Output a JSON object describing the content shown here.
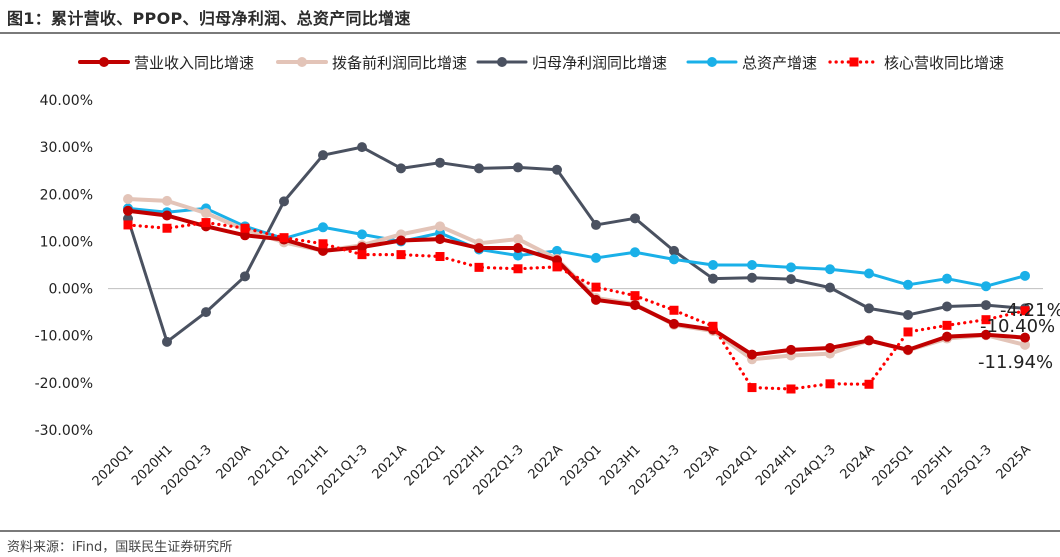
{
  "figure": {
    "title": "图1：累计营收、PPOP、归母净利润、总资产同比增速",
    "source": "资料来源：iFind，国联民生证券研究所"
  },
  "chart_data": {
    "type": "line",
    "categories": [
      "2020Q1",
      "2020H1",
      "2020Q1-3",
      "2020A",
      "2021Q1",
      "2021H1",
      "2021Q1-3",
      "2021A",
      "2022Q1",
      "2022H1",
      "2022Q1-3",
      "2022A",
      "2023Q1",
      "2023H1",
      "2023Q1-3",
      "2023A",
      "2024Q1",
      "2024H1",
      "2024Q1-3",
      "2024A",
      "2025Q1",
      "2025H1",
      "2025Q1-3",
      "2025A"
    ],
    "ylim": [
      -30,
      40
    ],
    "yticks": [
      -30,
      -20,
      -10,
      0,
      10,
      20,
      30,
      40
    ],
    "ytick_labels": [
      "-30.00%",
      "-20.00%",
      "-10.00%",
      "0.00%",
      "10.00%",
      "20.00%",
      "30.00%",
      "40.00%"
    ],
    "legend_position": "top",
    "grid": false,
    "series": [
      {
        "name": "营业收入同比增速",
        "color": "#c00000",
        "style": "solid",
        "width": 4,
        "values": [
          16.5,
          15.5,
          13.2,
          11.3,
          10.4,
          8.0,
          8.8,
          10.2,
          10.5,
          8.6,
          8.6,
          6.0,
          -2.4,
          -3.5,
          -7.5,
          -8.7,
          -14.0,
          -13.0,
          -12.6,
          -11.0,
          -13.0,
          -10.2,
          -9.8,
          -10.4
        ]
      },
      {
        "name": "拨备前利润同比增速",
        "color": "#e3c4b8",
        "style": "solid",
        "width": 4,
        "values": [
          19.0,
          18.6,
          16.0,
          12.5,
          9.8,
          8.0,
          9.2,
          11.5,
          13.2,
          9.6,
          10.5,
          6.3,
          -2.0,
          -3.3,
          -7.7,
          -9.0,
          -15.0,
          -14.2,
          -13.8,
          -11.0,
          -13.1,
          -10.6,
          -9.9,
          -11.94
        ]
      },
      {
        "name": "归母净利润同比增速",
        "color": "#4a5160",
        "style": "solid",
        "width": 3,
        "values": [
          14.8,
          -11.3,
          -5.0,
          2.6,
          18.5,
          28.3,
          30.0,
          25.5,
          26.7,
          25.5,
          25.7,
          25.2,
          13.5,
          14.9,
          8.0,
          2.1,
          2.3,
          2.0,
          0.2,
          -4.2,
          -5.6,
          -3.8,
          -3.5,
          -4.21
        ]
      },
      {
        "name": "总资产增速",
        "color": "#1ab0e8",
        "style": "solid",
        "width": 3,
        "values": [
          17.0,
          16.2,
          17.0,
          13.2,
          10.6,
          13.0,
          11.5,
          10.0,
          11.8,
          8.3,
          7.0,
          8.0,
          6.5,
          7.7,
          6.2,
          5.0,
          5.0,
          4.5,
          4.1,
          3.2,
          0.8,
          2.1,
          0.5,
          2.7
        ]
      },
      {
        "name": "核心营收同比增速",
        "color": "#ff0000",
        "style": "dotted",
        "width": 3,
        "values": [
          13.5,
          12.8,
          14.0,
          12.8,
          10.8,
          9.5,
          7.2,
          7.2,
          6.8,
          4.5,
          4.2,
          4.6,
          0.3,
          -1.5,
          -4.6,
          -8.0,
          -21.0,
          -21.3,
          -20.2,
          -20.3,
          -9.2,
          -7.8,
          -6.6,
          -4.7
        ]
      }
    ],
    "annotations": [
      {
        "text": "-4.21%",
        "value": -4.21
      },
      {
        "text": "-10.40%",
        "value": -10.4
      },
      {
        "text": "-11.94%",
        "value": -11.94
      }
    ]
  }
}
